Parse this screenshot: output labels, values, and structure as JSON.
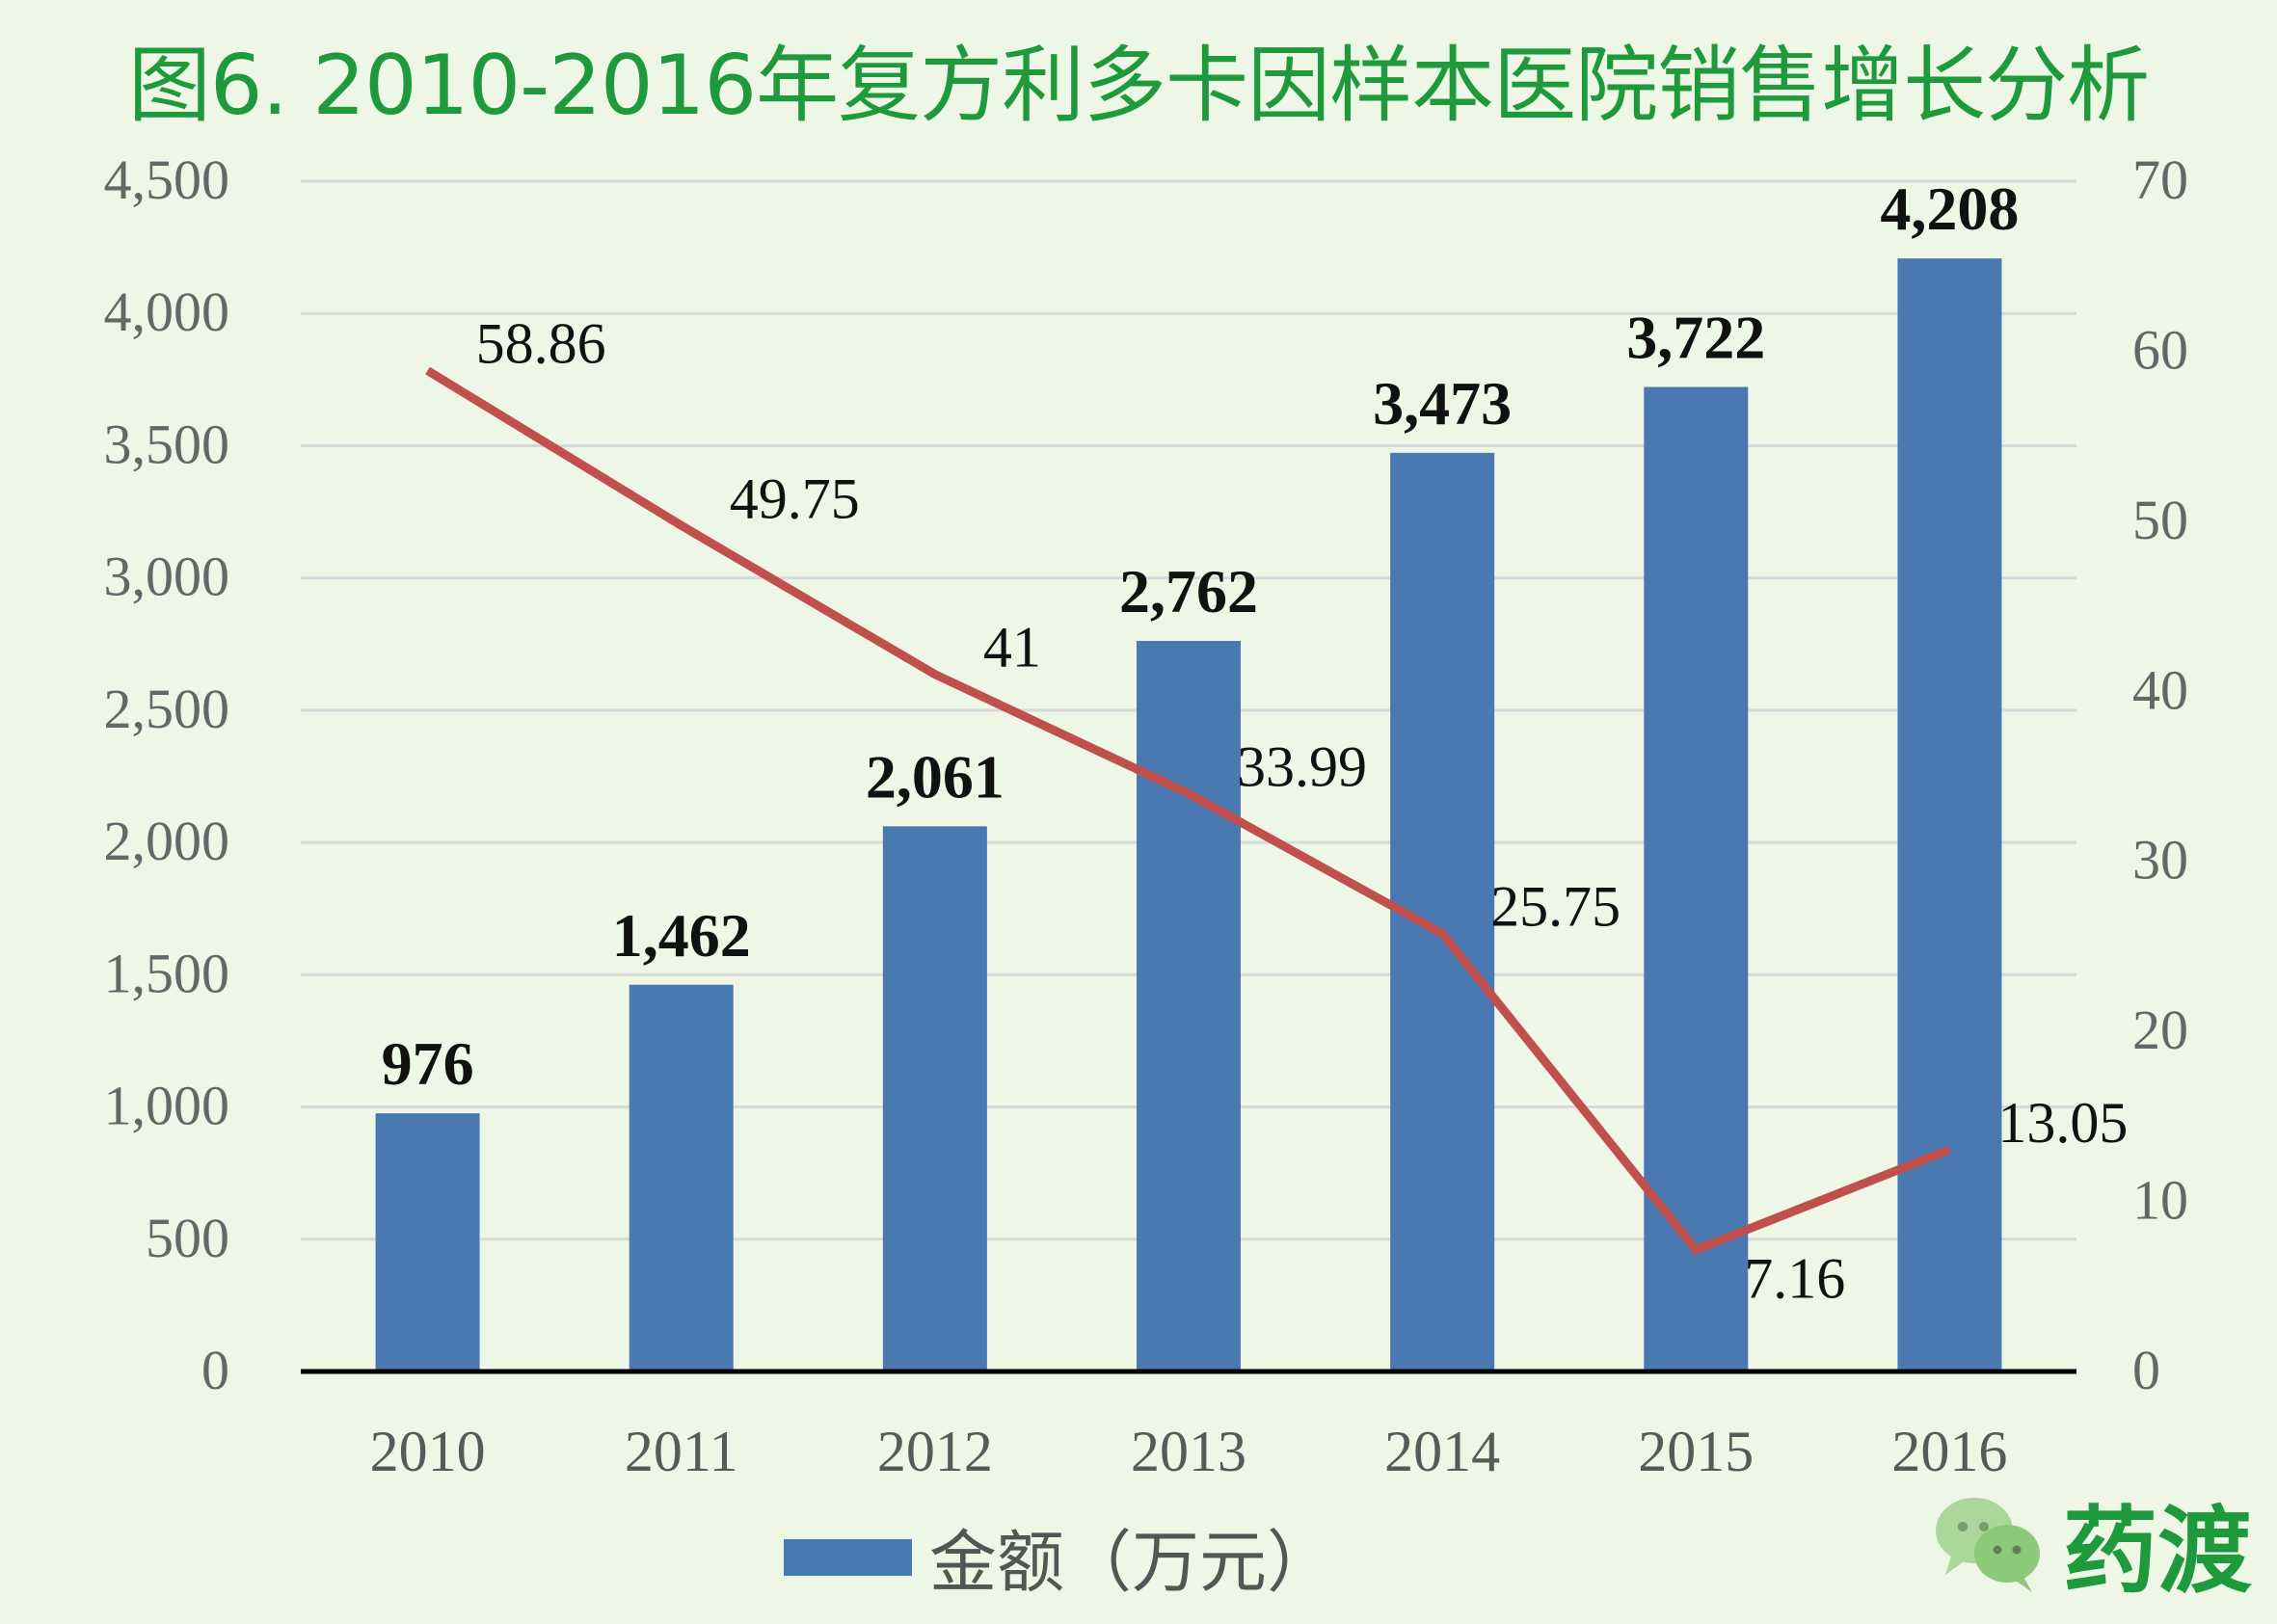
{
  "chart_data": {
    "type": "bar+line",
    "title": "图6. 2010-2016年复方利多卡因样本医院销售增长分析",
    "categories": [
      "2010",
      "2011",
      "2012",
      "2013",
      "2014",
      "2015",
      "2016"
    ],
    "series": [
      {
        "name": "金额（万元）",
        "type": "bar",
        "axis": "left",
        "color": "#4a78b0",
        "values": [
          976,
          1462,
          2061,
          2762,
          3473,
          3722,
          4208
        ],
        "labels": [
          "976",
          "1,462",
          "2,061",
          "2,762",
          "3,473",
          "3,722",
          "4,208"
        ]
      },
      {
        "type": "line",
        "axis": "right",
        "color": "#c0504d",
        "values": [
          58.86,
          49.75,
          41,
          33.99,
          25.75,
          7.16,
          13.05
        ],
        "labels": [
          "58.86",
          "49.75",
          "41",
          "33.99",
          "25.75",
          "7.16",
          "13.05"
        ]
      }
    ],
    "y_left": {
      "range": [
        0,
        4500
      ],
      "ticks": [
        "0",
        "500",
        "1,000",
        "1,500",
        "2,000",
        "2,500",
        "3,000",
        "3,500",
        "4,000",
        "4,500"
      ]
    },
    "y_right": {
      "range": [
        0,
        70
      ],
      "ticks": [
        "0",
        "10",
        "20",
        "30",
        "40",
        "50",
        "60",
        "70"
      ]
    },
    "grid": true,
    "legend": {
      "position": "bottom",
      "entries": [
        "金额（万元）"
      ]
    }
  },
  "watermark": {
    "text": "药渡",
    "icon": "wechat-icon"
  }
}
